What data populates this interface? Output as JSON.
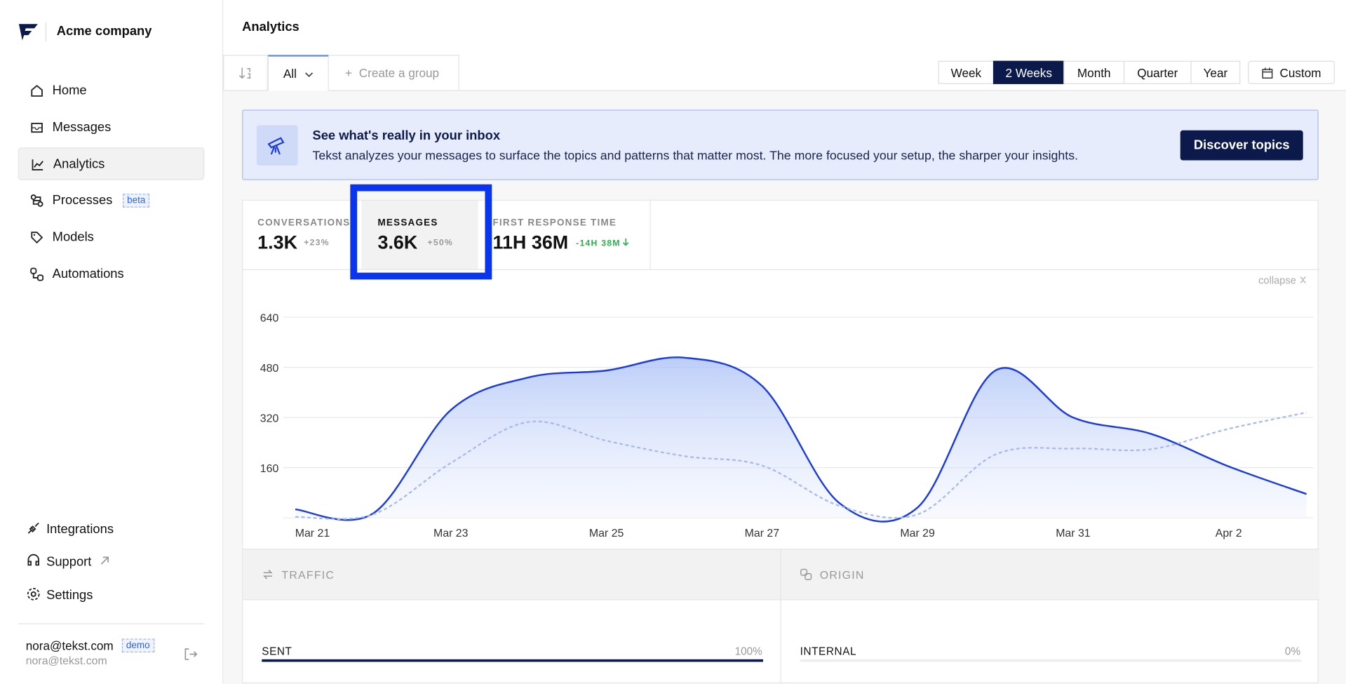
{
  "sidebar": {
    "company": "Acme company",
    "nav": [
      {
        "label": "Home"
      },
      {
        "label": "Messages"
      },
      {
        "label": "Analytics"
      },
      {
        "label": "Processes",
        "badge": "beta"
      },
      {
        "label": "Models"
      },
      {
        "label": "Automations"
      }
    ],
    "active_nav": 2,
    "bottom_nav": [
      {
        "label": "Integrations"
      },
      {
        "label": "Support"
      },
      {
        "label": "Settings"
      }
    ],
    "user": {
      "email": "nora@tekst.com",
      "badge": "demo",
      "subtitle": "nora@tekst.com"
    }
  },
  "header": {
    "title": "Analytics"
  },
  "tabs": {
    "active": "All",
    "create": "Create a group"
  },
  "periods": [
    "Week",
    "2 Weeks",
    "Month",
    "Quarter",
    "Year"
  ],
  "active_period": 1,
  "custom": "Custom",
  "banner": {
    "title": "See what's really in your inbox",
    "text": "Tekst analyzes your messages to surface the topics and patterns that matter most. The more focused your setup, the sharper your insights.",
    "button": "Discover topics"
  },
  "metrics": [
    {
      "label": "CONVERSATIONS",
      "value": "1.3K",
      "change": "+23%"
    },
    {
      "label": "MESSAGES",
      "value": "3.6K",
      "change": "+50%"
    },
    {
      "label": "FIRST RESPONSE TIME",
      "value": "11H 36M",
      "change": "-14H 38M"
    }
  ],
  "collapse": "collapse",
  "chart_data": {
    "type": "line",
    "categories": [
      "Mar 21",
      null,
      "Mar 23",
      null,
      "Mar 25",
      null,
      "Mar 27",
      null,
      "Mar 29",
      null,
      "Mar 31",
      null,
      "Apr 2",
      null
    ],
    "series": [
      {
        "color": "#1a3be0",
        "values": [
          27,
          14,
          344,
          448,
          470,
          511,
          421,
          46,
          33,
          470,
          320,
          268,
          164,
          76
        ]
      },
      {
        "color": "#a6b8f2",
        "values": [
          3,
          11,
          175,
          306,
          246,
          197,
          167,
          38,
          11,
          202,
          221,
          219,
          284,
          336
        ]
      }
    ],
    "ylim": [
      0,
      640
    ],
    "yticks": [
      160,
      320,
      480,
      640
    ],
    "grid": true
  },
  "breakdown": [
    {
      "title": "TRAFFIC",
      "label": "SENT",
      "value": 100,
      "value_label": "100%"
    },
    {
      "title": "ORIGIN",
      "label": "INTERNAL",
      "value": 0,
      "value_label": "0%"
    }
  ]
}
